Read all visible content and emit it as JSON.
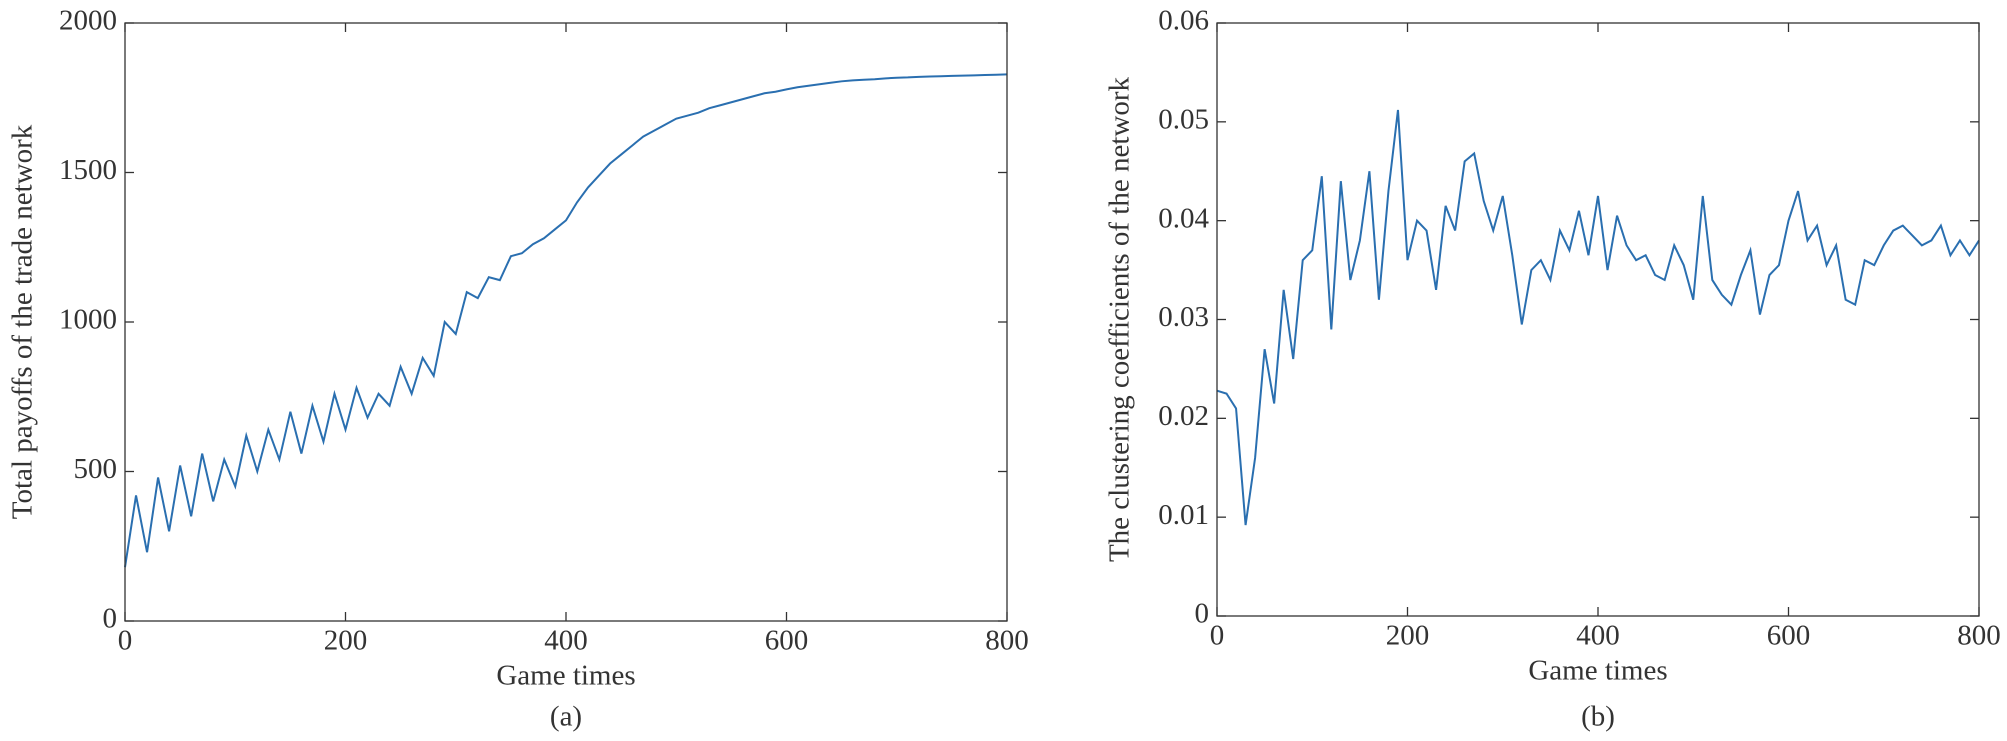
{
  "chart_data": [
    {
      "type": "line",
      "xlabel": "Game times",
      "ylabel": "Total payoffs of the trade network",
      "caption": "(a)",
      "color": "#2a6fb0",
      "xlim": [
        0,
        800
      ],
      "xticks": [
        0,
        200,
        400,
        600,
        800
      ],
      "ylim": [
        0,
        2000
      ],
      "yticks": [
        0,
        500,
        1000,
        1500,
        2000
      ],
      "x": [
        0,
        10,
        20,
        30,
        40,
        50,
        60,
        70,
        80,
        90,
        100,
        110,
        120,
        130,
        140,
        150,
        160,
        170,
        180,
        190,
        200,
        210,
        220,
        230,
        240,
        250,
        260,
        270,
        280,
        290,
        300,
        310,
        320,
        330,
        340,
        350,
        360,
        370,
        380,
        390,
        400,
        410,
        420,
        430,
        440,
        450,
        460,
        470,
        480,
        490,
        500,
        510,
        520,
        530,
        540,
        550,
        560,
        570,
        580,
        590,
        600,
        610,
        620,
        630,
        640,
        650,
        660,
        670,
        680,
        690,
        700,
        710,
        720,
        730,
        740,
        750,
        760,
        770,
        780,
        790,
        800
      ],
      "values": [
        180,
        420,
        230,
        480,
        300,
        520,
        350,
        560,
        400,
        540,
        450,
        620,
        500,
        640,
        540,
        700,
        560,
        720,
        600,
        760,
        640,
        780,
        680,
        760,
        720,
        850,
        760,
        880,
        820,
        1000,
        960,
        1100,
        1080,
        1150,
        1140,
        1220,
        1230,
        1260,
        1280,
        1310,
        1340,
        1400,
        1450,
        1490,
        1530,
        1560,
        1590,
        1620,
        1640,
        1660,
        1680,
        1690,
        1700,
        1715,
        1725,
        1735,
        1745,
        1755,
        1765,
        1770,
        1778,
        1785,
        1790,
        1795,
        1800,
        1805,
        1808,
        1810,
        1812,
        1815,
        1817,
        1818,
        1820,
        1821,
        1822,
        1823,
        1824,
        1825,
        1826,
        1827,
        1828
      ]
    },
    {
      "type": "line",
      "xlabel": "Game times",
      "ylabel": "The clustering coefficients of the network",
      "caption": "(b)",
      "color": "#2a6fb0",
      "xlim": [
        0,
        800
      ],
      "xticks": [
        0,
        200,
        400,
        600,
        800
      ],
      "ylim": [
        0,
        0.06
      ],
      "yticks": [
        0,
        0.01,
        0.02,
        0.03,
        0.04,
        0.05,
        0.06
      ],
      "x": [
        0,
        10,
        20,
        30,
        40,
        50,
        60,
        70,
        80,
        90,
        100,
        110,
        120,
        130,
        140,
        150,
        160,
        170,
        180,
        190,
        200,
        210,
        220,
        230,
        240,
        250,
        260,
        270,
        280,
        290,
        300,
        310,
        320,
        330,
        340,
        350,
        360,
        370,
        380,
        390,
        400,
        410,
        420,
        430,
        440,
        450,
        460,
        470,
        480,
        490,
        500,
        510,
        520,
        530,
        540,
        550,
        560,
        570,
        580,
        590,
        600,
        610,
        620,
        630,
        640,
        650,
        660,
        670,
        680,
        690,
        700,
        710,
        720,
        730,
        740,
        750,
        760,
        770,
        780,
        790,
        800
      ],
      "values": [
        0.0228,
        0.0225,
        0.021,
        0.0092,
        0.016,
        0.027,
        0.0215,
        0.033,
        0.026,
        0.036,
        0.037,
        0.0445,
        0.029,
        0.044,
        0.034,
        0.038,
        0.045,
        0.032,
        0.043,
        0.0512,
        0.036,
        0.04,
        0.039,
        0.033,
        0.0415,
        0.039,
        0.046,
        0.0468,
        0.042,
        0.039,
        0.0425,
        0.0365,
        0.0295,
        0.035,
        0.036,
        0.034,
        0.039,
        0.037,
        0.041,
        0.0365,
        0.0425,
        0.035,
        0.0405,
        0.0375,
        0.036,
        0.0365,
        0.0345,
        0.034,
        0.0375,
        0.0355,
        0.032,
        0.0425,
        0.034,
        0.0325,
        0.0315,
        0.0345,
        0.037,
        0.0305,
        0.0345,
        0.0355,
        0.04,
        0.043,
        0.038,
        0.0395,
        0.0355,
        0.0375,
        0.032,
        0.0315,
        0.036,
        0.0355,
        0.0375,
        0.039,
        0.0395,
        0.0385,
        0.0375,
        0.038,
        0.0395,
        0.0365,
        0.038,
        0.0365,
        0.038
      ]
    }
  ]
}
